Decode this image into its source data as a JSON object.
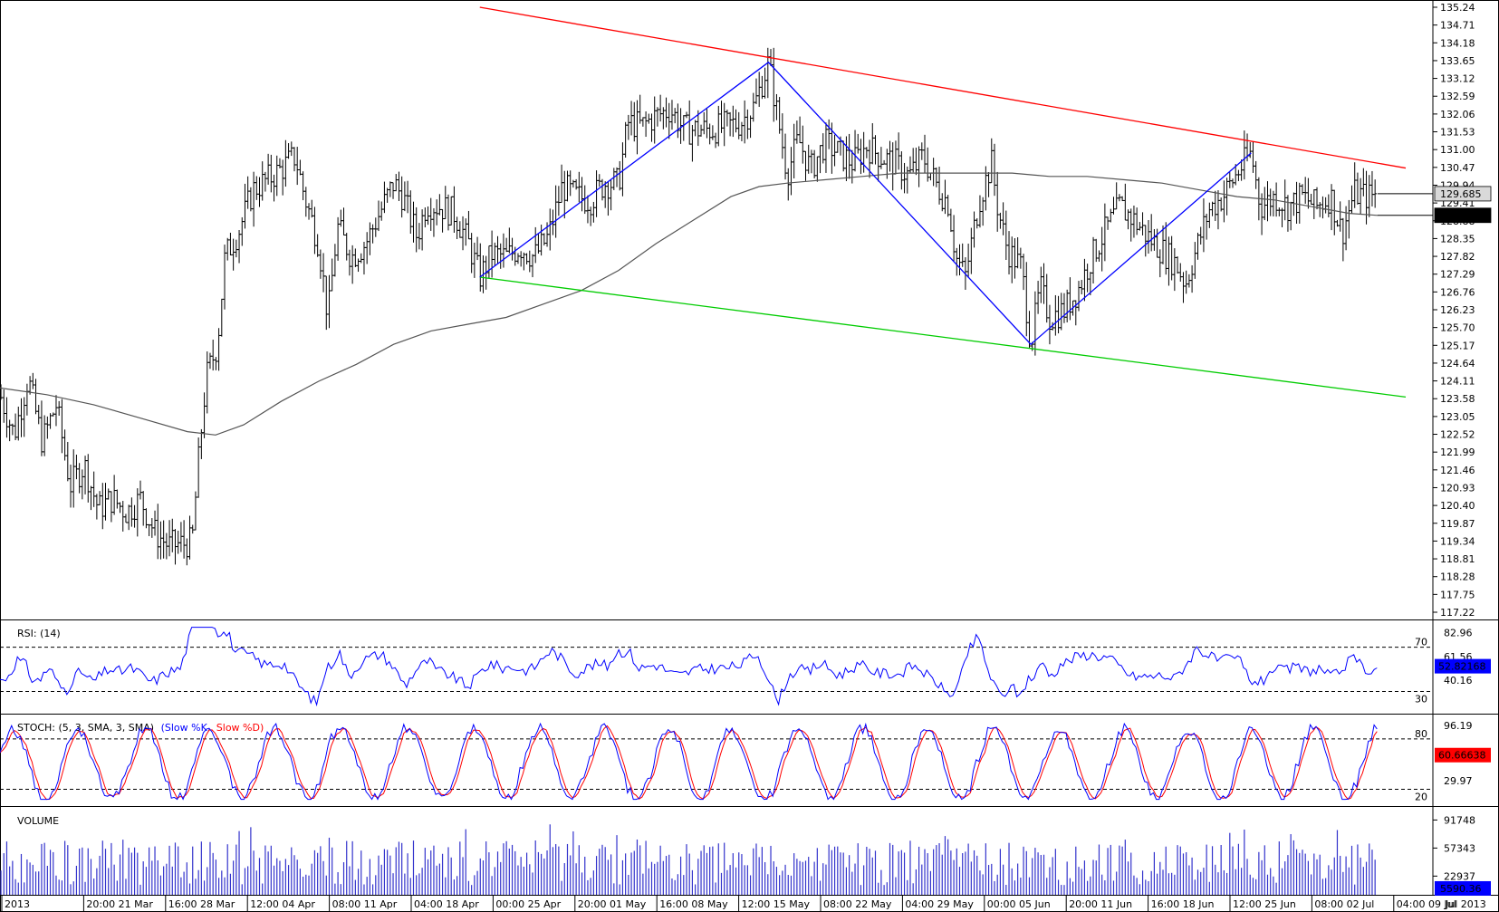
{
  "chart_data": {
    "type": "line",
    "instrument_timeframe": "4H",
    "price_panel": {
      "ylim": [
        117.22,
        135.24
      ],
      "ticks": [
        135.24,
        134.71,
        134.18,
        133.65,
        133.12,
        132.59,
        132.06,
        131.53,
        131.0,
        130.47,
        129.94,
        129.41,
        128.88,
        128.35,
        127.82,
        127.29,
        126.76,
        126.23,
        125.7,
        125.17,
        124.64,
        124.11,
        123.58,
        123.05,
        122.52,
        121.99,
        121.46,
        120.93,
        120.4,
        119.87,
        119.34,
        118.81,
        118.28,
        117.75,
        117.22
      ],
      "tick_labels": [
        "135.24",
        "134.71",
        "134.18",
        "133.65",
        "133.12",
        "132.59",
        "132.06",
        "131.53",
        "131.00",
        "130.47",
        "129.94",
        "129.41",
        "128.88",
        "128.35",
        "127.82",
        "127.29",
        "126.76",
        "126.23",
        "125.70",
        "125.17",
        "124.64",
        "124.11",
        "123.58",
        "123.05",
        "122.52",
        "121.99",
        "121.46",
        "120.93",
        "120.40",
        "119.87",
        "119.34",
        "118.81",
        "118.28",
        "117.75",
        "117.22"
      ],
      "last_price_label": "129.685",
      "last_price": 129.685,
      "ma_label": "129.042",
      "ma_value": 129.042,
      "ohlc_path_keypoints": [
        [
          0,
          123.7
        ],
        [
          15,
          122.5
        ],
        [
          30,
          124.2
        ],
        [
          45,
          122.3
        ],
        [
          60,
          123.4
        ],
        [
          75,
          121.0
        ],
        [
          90,
          121.6
        ],
        [
          105,
          120.3
        ],
        [
          120,
          120.6
        ],
        [
          135,
          120.2
        ],
        [
          150,
          120.6
        ],
        [
          165,
          119.6
        ],
        [
          180,
          119.2
        ],
        [
          205,
          119.3
        ],
        [
          212,
          121.8
        ],
        [
          220,
          124.2
        ],
        [
          232,
          125.2
        ],
        [
          240,
          127.8
        ],
        [
          255,
          128.6
        ],
        [
          270,
          129.8
        ],
        [
          295,
          130.3
        ],
        [
          315,
          130.8
        ],
        [
          325,
          129.6
        ],
        [
          340,
          128.2
        ],
        [
          350,
          126.0
        ],
        [
          360,
          128.7
        ],
        [
          375,
          127.8
        ],
        [
          390,
          128.2
        ],
        [
          405,
          129.1
        ],
        [
          420,
          130.0
        ],
        [
          430,
          129.6
        ],
        [
          445,
          128.4
        ],
        [
          455,
          129.4
        ],
        [
          470,
          129.3
        ],
        [
          485,
          129.1
        ],
        [
          500,
          128.2
        ],
        [
          512,
          127.2
        ],
        [
          525,
          127.9
        ],
        [
          540,
          127.8
        ],
        [
          555,
          128.1
        ],
        [
          570,
          127.8
        ],
        [
          585,
          128.4
        ],
        [
          600,
          129.9
        ],
        [
          615,
          129.6
        ],
        [
          630,
          129.5
        ],
        [
          645,
          130.0
        ],
        [
          660,
          130.0
        ],
        [
          670,
          131.8
        ],
        [
          685,
          131.7
        ],
        [
          700,
          132.0
        ],
        [
          715,
          132.2
        ],
        [
          730,
          131.6
        ],
        [
          745,
          131.6
        ],
        [
          760,
          131.6
        ],
        [
          775,
          131.7
        ],
        [
          790,
          131.8
        ],
        [
          805,
          132.3
        ],
        [
          820,
          133.6
        ],
        [
          832,
          131.6
        ],
        [
          840,
          130.3
        ],
        [
          852,
          131.3
        ],
        [
          865,
          130.4
        ],
        [
          880,
          131.2
        ],
        [
          895,
          130.9
        ],
        [
          910,
          130.6
        ],
        [
          925,
          131.1
        ],
        [
          940,
          130.8
        ],
        [
          955,
          130.6
        ],
        [
          970,
          130.2
        ],
        [
          985,
          130.8
        ],
        [
          1000,
          129.9
        ],
        [
          1012,
          129.4
        ],
        [
          1020,
          127.8
        ],
        [
          1030,
          127.2
        ],
        [
          1045,
          129.5
        ],
        [
          1058,
          130.6
        ],
        [
          1065,
          129.2
        ],
        [
          1075,
          128.0
        ],
        [
          1090,
          127.5
        ],
        [
          1100,
          125.2
        ],
        [
          1110,
          126.9
        ],
        [
          1120,
          126.0
        ],
        [
          1135,
          126.2
        ],
        [
          1150,
          126.8
        ],
        [
          1165,
          127.8
        ],
        [
          1180,
          128.6
        ],
        [
          1195,
          129.3
        ],
        [
          1210,
          128.9
        ],
        [
          1225,
          128.4
        ],
        [
          1240,
          128.0
        ],
        [
          1255,
          127.6
        ],
        [
          1265,
          127.0
        ],
        [
          1275,
          127.9
        ],
        [
          1290,
          129.2
        ],
        [
          1305,
          129.6
        ],
        [
          1320,
          130.3
        ],
        [
          1335,
          130.9
        ],
        [
          1345,
          129.3
        ],
        [
          1360,
          129.6
        ],
        [
          1375,
          129.3
        ],
        [
          1390,
          129.6
        ],
        [
          1405,
          129.3
        ],
        [
          1420,
          129.6
        ],
        [
          1432,
          128.5
        ],
        [
          1445,
          129.7
        ],
        [
          1460,
          129.6
        ],
        [
          1470,
          129.685
        ]
      ],
      "sma200": [
        [
          0,
          123.9
        ],
        [
          50,
          123.7
        ],
        [
          100,
          123.4
        ],
        [
          150,
          123.0
        ],
        [
          200,
          122.6
        ],
        [
          230,
          122.5
        ],
        [
          260,
          122.8
        ],
        [
          300,
          123.5
        ],
        [
          340,
          124.1
        ],
        [
          380,
          124.6
        ],
        [
          420,
          125.2
        ],
        [
          460,
          125.6
        ],
        [
          500,
          125.8
        ],
        [
          540,
          126.0
        ],
        [
          580,
          126.4
        ],
        [
          620,
          126.8
        ],
        [
          660,
          127.4
        ],
        [
          700,
          128.2
        ],
        [
          740,
          128.9
        ],
        [
          780,
          129.6
        ],
        [
          810,
          129.9
        ],
        [
          840,
          130.0
        ],
        [
          880,
          130.1
        ],
        [
          920,
          130.2
        ],
        [
          960,
          130.3
        ],
        [
          1000,
          130.3
        ],
        [
          1040,
          130.3
        ],
        [
          1080,
          130.3
        ],
        [
          1120,
          130.2
        ],
        [
          1160,
          130.2
        ],
        [
          1200,
          130.1
        ],
        [
          1240,
          130.0
        ],
        [
          1280,
          129.8
        ],
        [
          1320,
          129.6
        ],
        [
          1360,
          129.5
        ],
        [
          1400,
          129.3
        ],
        [
          1440,
          129.1
        ],
        [
          1470,
          129.042
        ]
      ],
      "trendlines": [
        {
          "name": "resistance",
          "color": "#ff0000",
          "from": [
            512,
            135.24
          ],
          "to": [
            1500,
            130.45
          ]
        },
        {
          "name": "support",
          "color": "#00cc00",
          "from": [
            512,
            127.2
          ],
          "to": [
            1500,
            123.63
          ]
        },
        {
          "name": "zigzag",
          "color": "#0000ff",
          "points": [
            [
              512,
              127.2
            ],
            [
              820,
              133.6
            ],
            [
              1100,
              125.2
            ],
            [
              1335,
              130.9
            ]
          ]
        }
      ]
    },
    "rsi_panel": {
      "title_label": "RSI: (14)",
      "ylim": [
        10,
        95
      ],
      "levels": [
        70,
        30
      ],
      "level_labels": [
        "70",
        "30"
      ],
      "ticks": [
        82.96,
        61.56,
        40.16
      ],
      "tick_labels": [
        "82.96",
        "61.56",
        "40.16"
      ],
      "last_label": "52.82168",
      "last_value": 52.82168
    },
    "stoch_panel": {
      "title_label": "STOCH: (5, 3, SMA, 3, SMA)",
      "legend_k": "(Slow %K,",
      "legend_d": "Slow %D)",
      "color_k": "#0000ff",
      "color_d": "#ff0000",
      "ylim": [
        0,
        110
      ],
      "levels": [
        80,
        20
      ],
      "level_labels": [
        "80",
        "20"
      ],
      "ticks": [
        96.19,
        29.97
      ],
      "tick_labels": [
        "96.19",
        "29.97"
      ],
      "last_label": "60.66638",
      "last_value": 60.66638
    },
    "volume_panel": {
      "title_label": "VOLUME",
      "ylim": [
        0,
        100000
      ],
      "ticks": [
        91748,
        57343,
        22937
      ],
      "tick_labels": [
        "91748",
        "57343",
        "22937"
      ],
      "last_label": "5590.36",
      "last_value": 5590.36
    },
    "x_axis": {
      "labels": [
        "2013",
        "20:00 21 Mar",
        "16:00 28 Mar",
        "12:00 04 Apr",
        "08:00 11 Apr",
        "04:00 18 Apr",
        "00:00 25 Apr",
        "20:00 01 May",
        "16:00 08 May",
        "12:00 15 May",
        "08:00 22 May",
        "04:00 29 May",
        "00:00 05 Jun",
        "20:00 11 Jun",
        "16:00 18 Jun",
        "12:00 25 Jun",
        "08:00 02 Jul",
        "04:00 09 Jul"
      ],
      "right_label": "Jul 2013"
    },
    "colors": {
      "bars": "#000000",
      "ma": "#555555",
      "rsi": "#0000ff",
      "volume": "#3333cc",
      "tag_last_price_bg": "#d9d9d9",
      "tag_ma_bg": "#000000",
      "tag_indicator_bg": "#0000ff",
      "tag_stoch_bg": "#ff0000"
    }
  }
}
